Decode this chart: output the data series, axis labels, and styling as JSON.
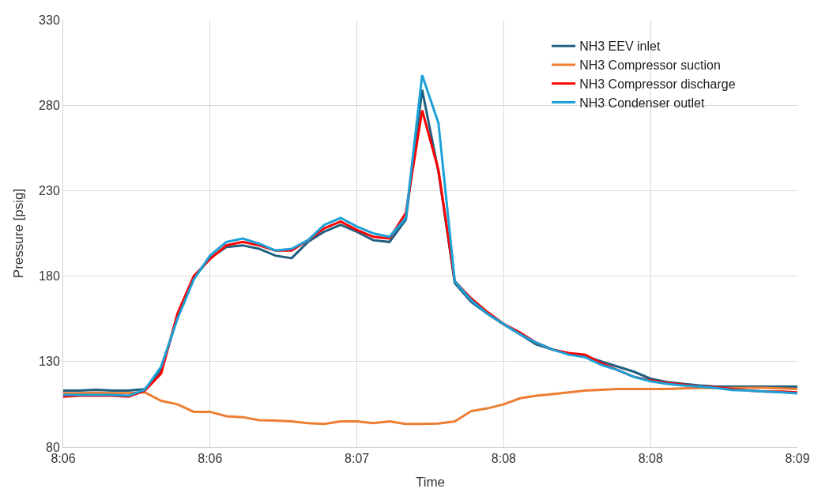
{
  "chart_data": {
    "type": "line",
    "xlabel": "Time",
    "ylabel": "Pressure [psig]",
    "x": [
      8.096667,
      8.097778,
      8.098889,
      8.1,
      8.101111,
      8.102222,
      8.103333,
      8.104444,
      8.105556,
      8.106667,
      8.107778,
      8.108889,
      8.11,
      8.111111,
      8.112222,
      8.113333,
      8.114444,
      8.115556,
      8.116667,
      8.117778,
      8.118889,
      8.12,
      8.121111,
      8.122222,
      8.123333,
      8.124444,
      8.125556,
      8.126667,
      8.127778,
      8.128889,
      8.13,
      8.131111,
      8.132222,
      8.133333,
      8.134444,
      8.135556,
      8.136667,
      8.137778,
      8.138889,
      8.14,
      8.141111,
      8.142222,
      8.143333,
      8.144444,
      8.145556,
      8.146667
    ],
    "series": [
      {
        "name": "NH3 EEV inlet",
        "color": "#1f5f7f",
        "values": [
          113,
          113,
          113.5,
          113,
          113,
          113.9,
          124.7,
          156,
          179,
          190.5,
          197,
          198,
          196,
          192,
          190.5,
          200,
          206,
          210,
          206,
          201,
          200,
          213,
          289,
          241,
          176,
          165,
          158,
          151.7,
          146,
          140,
          137,
          134.5,
          133,
          130,
          127,
          124,
          120,
          118,
          117,
          116,
          115.4,
          115.4,
          115.4,
          115.3,
          115.4,
          115.4
        ]
      },
      {
        "name": "NH3 Compressor suction",
        "color": "#ed7d31",
        "values": [
          111.5,
          111.5,
          111.8,
          111.5,
          111.5,
          112,
          107,
          105,
          100.6,
          100.6,
          98,
          97.5,
          95.7,
          95.5,
          95,
          94,
          93.5,
          95,
          95,
          94,
          95,
          93.5,
          93.5,
          93.8,
          95,
          101,
          102.6,
          105,
          108.5,
          110,
          111,
          112,
          113,
          113.5,
          114,
          114,
          114,
          114,
          114.3,
          114.5,
          114.5,
          114.6,
          114.7,
          114.7,
          114.3,
          114
        ]
      },
      {
        "name": "NH3 Compressor discharge",
        "color": "#ff0000",
        "values": [
          109.5,
          110,
          110,
          110,
          109.5,
          113,
          123,
          158,
          180,
          190,
          198,
          200,
          198,
          195,
          195,
          201,
          208,
          212,
          207,
          203,
          202,
          217,
          277,
          242,
          177,
          167,
          159,
          152,
          147,
          141,
          137,
          135,
          134,
          129,
          125,
          121,
          119,
          117.5,
          116.5,
          115.5,
          115,
          114,
          113,
          112.5,
          112.5,
          112
        ]
      },
      {
        "name": "NH3 Condenser outlet",
        "color": "#1ba1d6",
        "values": [
          110.5,
          110.5,
          110.5,
          110.5,
          110,
          113.5,
          127,
          155,
          178,
          192,
          200,
          202,
          199,
          195,
          196,
          201,
          210,
          214,
          209,
          205,
          203,
          214,
          297.6,
          269.6,
          177,
          166,
          158,
          152,
          146,
          141,
          137,
          134,
          132.5,
          128,
          125,
          121,
          118.5,
          117,
          116,
          115.4,
          114.5,
          113.4,
          113,
          112.5,
          112,
          111.4
        ]
      }
    ],
    "xlim": [
      8.096667,
      8.146667
    ],
    "xticks": [
      {
        "value": 8.096667,
        "label": "8:06"
      },
      {
        "value": 8.106667,
        "label": "8:06"
      },
      {
        "value": 8.116667,
        "label": "8:07"
      },
      {
        "value": 8.126667,
        "label": "8:08"
      },
      {
        "value": 8.136667,
        "label": "8:08"
      },
      {
        "value": 8.146667,
        "label": "8:09"
      }
    ],
    "ylim": [
      80,
      330
    ],
    "yticks": [
      80,
      130,
      180,
      230,
      280,
      330
    ],
    "grid": true,
    "legend": "top right",
    "marker": "none",
    "line_style": "solid"
  }
}
